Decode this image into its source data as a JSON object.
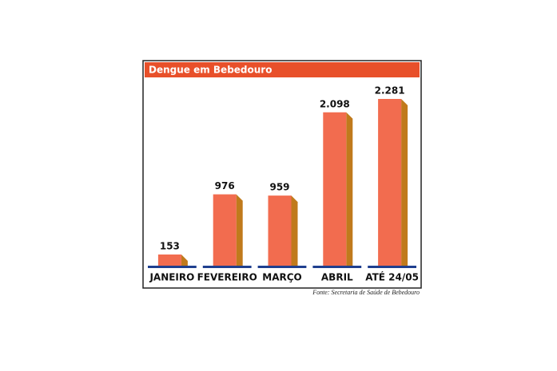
{
  "chart_data": {
    "type": "bar",
    "title": "Dengue em Bebedouro",
    "categories": [
      "JANEIRO",
      "FEVEREIRO",
      "MARÇO",
      "ABRIL",
      "ATÉ 24/05"
    ],
    "values": [
      153,
      976,
      959,
      2098,
      2281
    ],
    "value_labels": [
      "153",
      "976",
      "959",
      "2.098",
      "2.281"
    ],
    "color": "#f26c4f",
    "source": "Fonte: Secretaria de Saúde de Bebedouro"
  }
}
